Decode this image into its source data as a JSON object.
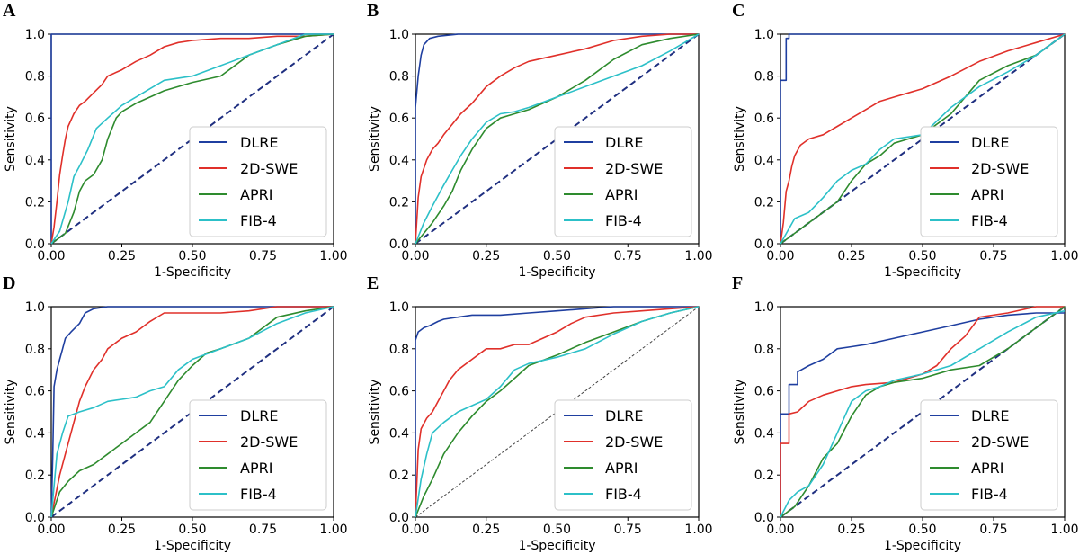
{
  "figure": {
    "colors": {
      "DLRE": "#1f3fa0",
      "2D-SWE": "#e0302a",
      "APRI": "#2e8b2e",
      "FIB-4": "#2cc0c8",
      "chance": "#1f2f80",
      "chance_thin": "#444444"
    }
  },
  "chart_data": [
    {
      "panel": "A",
      "type": "line",
      "xlabel": "1-Specificity",
      "ylabel": "Sensitivity",
      "xlim": [
        0,
        1
      ],
      "ylim": [
        0,
        1
      ],
      "xticks": [
        "0.00",
        "0.25",
        "0.50",
        "0.75",
        "1.00"
      ],
      "yticks": [
        "0.0",
        "0.2",
        "0.4",
        "0.6",
        "0.8",
        "1.0"
      ],
      "grid": false,
      "legend": "lower-right",
      "chance_style": "thick",
      "series": [
        {
          "name": "DLRE",
          "x": [
            0,
            0,
            1
          ],
          "y": [
            0,
            1,
            1
          ]
        },
        {
          "name": "2D-SWE",
          "x": [
            0,
            0.01,
            0.02,
            0.03,
            0.04,
            0.05,
            0.06,
            0.08,
            0.1,
            0.12,
            0.15,
            0.18,
            0.2,
            0.25,
            0.3,
            0.35,
            0.4,
            0.45,
            0.5,
            0.6,
            0.7,
            0.8,
            0.9,
            1.0
          ],
          "y": [
            0,
            0.08,
            0.2,
            0.33,
            0.42,
            0.5,
            0.56,
            0.62,
            0.66,
            0.68,
            0.72,
            0.76,
            0.8,
            0.83,
            0.87,
            0.9,
            0.94,
            0.96,
            0.97,
            0.98,
            0.98,
            0.99,
            0.99,
            1.0
          ]
        },
        {
          "name": "APRI",
          "x": [
            0,
            0.05,
            0.08,
            0.1,
            0.12,
            0.15,
            0.18,
            0.2,
            0.23,
            0.25,
            0.3,
            0.35,
            0.4,
            0.5,
            0.6,
            0.7,
            0.8,
            0.9,
            1.0
          ],
          "y": [
            0,
            0.05,
            0.15,
            0.25,
            0.3,
            0.33,
            0.4,
            0.5,
            0.6,
            0.63,
            0.67,
            0.7,
            0.73,
            0.77,
            0.8,
            0.9,
            0.95,
            0.99,
            1.0
          ]
        },
        {
          "name": "FIB-4",
          "x": [
            0,
            0.03,
            0.06,
            0.08,
            0.1,
            0.13,
            0.16,
            0.2,
            0.25,
            0.3,
            0.35,
            0.4,
            0.5,
            0.6,
            0.7,
            0.8,
            0.9,
            1.0
          ],
          "y": [
            0,
            0.06,
            0.2,
            0.32,
            0.37,
            0.45,
            0.55,
            0.6,
            0.66,
            0.7,
            0.74,
            0.78,
            0.8,
            0.85,
            0.9,
            0.95,
            1.0,
            1.0
          ]
        }
      ]
    },
    {
      "panel": "B",
      "type": "line",
      "xlabel": "1-Specificity",
      "ylabel": "Sensitivity",
      "xlim": [
        0,
        1
      ],
      "ylim": [
        0,
        1
      ],
      "xticks": [
        "0.00",
        "0.25",
        "0.50",
        "0.75",
        "1.00"
      ],
      "yticks": [
        "0.0",
        "0.2",
        "0.4",
        "0.6",
        "0.8",
        "1.0"
      ],
      "grid": false,
      "legend": "lower-right",
      "chance_style": "thick",
      "series": [
        {
          "name": "DLRE",
          "x": [
            0,
            0,
            0.01,
            0.02,
            0.03,
            0.05,
            0.08,
            0.15,
            0.3,
            1.0
          ],
          "y": [
            0,
            0.65,
            0.8,
            0.9,
            0.95,
            0.98,
            0.99,
            1.0,
            1.0,
            1.0
          ]
        },
        {
          "name": "2D-SWE",
          "x": [
            0,
            0.01,
            0.02,
            0.04,
            0.06,
            0.08,
            0.1,
            0.13,
            0.16,
            0.2,
            0.25,
            0.3,
            0.35,
            0.4,
            0.5,
            0.6,
            0.7,
            0.8,
            0.9,
            1.0
          ],
          "y": [
            0,
            0.22,
            0.32,
            0.4,
            0.45,
            0.48,
            0.52,
            0.57,
            0.62,
            0.67,
            0.75,
            0.8,
            0.84,
            0.87,
            0.9,
            0.93,
            0.97,
            0.99,
            1.0,
            1.0
          ]
        },
        {
          "name": "APRI",
          "x": [
            0,
            0.03,
            0.06,
            0.1,
            0.13,
            0.16,
            0.2,
            0.25,
            0.3,
            0.35,
            0.4,
            0.5,
            0.6,
            0.7,
            0.8,
            0.9,
            1.0
          ],
          "y": [
            0,
            0.05,
            0.1,
            0.18,
            0.25,
            0.35,
            0.45,
            0.55,
            0.6,
            0.62,
            0.64,
            0.7,
            0.78,
            0.88,
            0.95,
            0.98,
            1.0
          ]
        },
        {
          "name": "FIB-4",
          "x": [
            0,
            0.03,
            0.06,
            0.1,
            0.13,
            0.16,
            0.2,
            0.25,
            0.3,
            0.35,
            0.4,
            0.5,
            0.6,
            0.7,
            0.8,
            0.9,
            1.0
          ],
          "y": [
            0,
            0.1,
            0.18,
            0.28,
            0.35,
            0.42,
            0.5,
            0.58,
            0.62,
            0.63,
            0.65,
            0.7,
            0.75,
            0.8,
            0.85,
            0.92,
            1.0
          ]
        }
      ]
    },
    {
      "panel": "C",
      "type": "line",
      "xlabel": "1-Specificity",
      "ylabel": "Sensitivity",
      "xlim": [
        0,
        1
      ],
      "ylim": [
        0,
        1
      ],
      "xticks": [
        "0.00",
        "0.25",
        "0.50",
        "0.75",
        "1.00"
      ],
      "yticks": [
        "0.0",
        "0.2",
        "0.4",
        "0.6",
        "0.8",
        "1.0"
      ],
      "grid": false,
      "legend": "lower-right",
      "chance_style": "thick",
      "series": [
        {
          "name": "DLRE",
          "x": [
            0,
            0,
            0.02,
            0.02,
            0.03,
            0.03,
            1.0
          ],
          "y": [
            0,
            0.78,
            0.78,
            0.98,
            0.98,
            1.0,
            1.0
          ]
        },
        {
          "name": "2D-SWE",
          "x": [
            0,
            0.01,
            0.02,
            0.03,
            0.04,
            0.05,
            0.07,
            0.1,
            0.15,
            0.2,
            0.25,
            0.3,
            0.35,
            0.4,
            0.5,
            0.6,
            0.7,
            0.8,
            0.9,
            1.0
          ],
          "y": [
            0,
            0.1,
            0.25,
            0.3,
            0.37,
            0.42,
            0.47,
            0.5,
            0.52,
            0.56,
            0.6,
            0.64,
            0.68,
            0.7,
            0.74,
            0.8,
            0.87,
            0.92,
            0.96,
            1.0
          ]
        },
        {
          "name": "APRI",
          "x": [
            0,
            0.05,
            0.1,
            0.15,
            0.2,
            0.25,
            0.3,
            0.35,
            0.4,
            0.5,
            0.6,
            0.7,
            0.8,
            0.9,
            1.0
          ],
          "y": [
            0,
            0.05,
            0.1,
            0.15,
            0.2,
            0.3,
            0.38,
            0.42,
            0.48,
            0.52,
            0.62,
            0.78,
            0.85,
            0.9,
            1.0
          ]
        },
        {
          "name": "FIB-4",
          "x": [
            0,
            0.05,
            0.1,
            0.15,
            0.2,
            0.25,
            0.3,
            0.35,
            0.4,
            0.5,
            0.6,
            0.7,
            0.8,
            0.9,
            1.0
          ],
          "y": [
            0,
            0.12,
            0.15,
            0.22,
            0.3,
            0.35,
            0.38,
            0.45,
            0.5,
            0.52,
            0.65,
            0.75,
            0.82,
            0.9,
            1.0
          ]
        }
      ]
    },
    {
      "panel": "D",
      "type": "line",
      "xlabel": "1-Specificity",
      "ylabel": "Sensitivity",
      "xlim": [
        0,
        1
      ],
      "ylim": [
        0,
        1
      ],
      "xticks": [
        "0.00",
        "0.25",
        "0.50",
        "0.75",
        "1.00"
      ],
      "yticks": [
        "0.0",
        "0.2",
        "0.4",
        "0.6",
        "0.8",
        "1.0"
      ],
      "grid": false,
      "legend": "lower-right",
      "chance_style": "thick",
      "series": [
        {
          "name": "DLRE",
          "x": [
            0,
            0.005,
            0.01,
            0.02,
            0.03,
            0.04,
            0.05,
            0.07,
            0.1,
            0.12,
            0.15,
            0.2,
            1.0
          ],
          "y": [
            0,
            0.28,
            0.62,
            0.7,
            0.75,
            0.8,
            0.85,
            0.88,
            0.92,
            0.97,
            0.99,
            1.0,
            1.0
          ]
        },
        {
          "name": "2D-SWE",
          "x": [
            0,
            0.03,
            0.06,
            0.08,
            0.1,
            0.12,
            0.15,
            0.18,
            0.2,
            0.25,
            0.3,
            0.35,
            0.4,
            0.5,
            0.6,
            0.7,
            0.8,
            1.0
          ],
          "y": [
            0,
            0.2,
            0.35,
            0.45,
            0.55,
            0.62,
            0.7,
            0.75,
            0.8,
            0.85,
            0.88,
            0.93,
            0.97,
            0.97,
            0.97,
            0.98,
            1.0,
            1.0
          ]
        },
        {
          "name": "APRI",
          "x": [
            0,
            0.03,
            0.06,
            0.1,
            0.15,
            0.2,
            0.25,
            0.3,
            0.35,
            0.4,
            0.45,
            0.5,
            0.55,
            0.6,
            0.7,
            0.8,
            0.9,
            1.0
          ],
          "y": [
            0,
            0.12,
            0.17,
            0.22,
            0.25,
            0.3,
            0.35,
            0.4,
            0.45,
            0.55,
            0.65,
            0.72,
            0.78,
            0.8,
            0.85,
            0.95,
            0.98,
            1.0
          ]
        },
        {
          "name": "FIB-4",
          "x": [
            0,
            0.02,
            0.04,
            0.06,
            0.1,
            0.15,
            0.2,
            0.25,
            0.3,
            0.35,
            0.4,
            0.45,
            0.5,
            0.6,
            0.7,
            0.8,
            0.9,
            1.0
          ],
          "y": [
            0,
            0.3,
            0.4,
            0.48,
            0.5,
            0.52,
            0.55,
            0.56,
            0.57,
            0.6,
            0.62,
            0.7,
            0.75,
            0.8,
            0.85,
            0.92,
            0.97,
            1.0
          ]
        }
      ]
    },
    {
      "panel": "E",
      "type": "line",
      "xlabel": "1-Specificity",
      "ylabel": "Sensitivity",
      "xlim": [
        0,
        1
      ],
      "ylim": [
        0,
        1
      ],
      "xticks": [
        "0.00",
        "0.25",
        "0.50",
        "0.75",
        "1.00"
      ],
      "yticks": [
        "0.0",
        "0.2",
        "0.4",
        "0.6",
        "0.8",
        "1.0"
      ],
      "grid": false,
      "legend": "lower-right",
      "chance_style": "thin",
      "series": [
        {
          "name": "DLRE",
          "x": [
            0,
            0,
            0.01,
            0.03,
            0.05,
            0.08,
            0.1,
            0.15,
            0.2,
            0.3,
            0.4,
            0.5,
            0.6,
            0.7,
            0.8,
            0.9,
            1.0
          ],
          "y": [
            0,
            0.84,
            0.88,
            0.9,
            0.91,
            0.93,
            0.94,
            0.95,
            0.96,
            0.96,
            0.97,
            0.98,
            0.99,
            1.0,
            1.0,
            1.0,
            1.0
          ]
        },
        {
          "name": "2D-SWE",
          "x": [
            0,
            0.01,
            0.02,
            0.04,
            0.06,
            0.08,
            0.1,
            0.12,
            0.15,
            0.2,
            0.25,
            0.3,
            0.35,
            0.4,
            0.45,
            0.5,
            0.55,
            0.6,
            0.7,
            0.8,
            0.9,
            1.0
          ],
          "y": [
            0,
            0.32,
            0.42,
            0.47,
            0.5,
            0.55,
            0.6,
            0.65,
            0.7,
            0.75,
            0.8,
            0.8,
            0.82,
            0.82,
            0.85,
            0.88,
            0.92,
            0.95,
            0.97,
            0.98,
            0.99,
            1.0
          ]
        },
        {
          "name": "APRI",
          "x": [
            0,
            0.03,
            0.06,
            0.1,
            0.15,
            0.2,
            0.25,
            0.3,
            0.35,
            0.4,
            0.5,
            0.6,
            0.7,
            0.8,
            0.9,
            1.0
          ],
          "y": [
            0,
            0.1,
            0.18,
            0.3,
            0.4,
            0.48,
            0.55,
            0.6,
            0.66,
            0.72,
            0.77,
            0.83,
            0.88,
            0.93,
            0.97,
            1.0
          ]
        },
        {
          "name": "FIB-4",
          "x": [
            0,
            0.02,
            0.04,
            0.06,
            0.1,
            0.15,
            0.2,
            0.25,
            0.3,
            0.35,
            0.4,
            0.5,
            0.6,
            0.7,
            0.8,
            0.9,
            1.0
          ],
          "y": [
            0,
            0.18,
            0.3,
            0.4,
            0.45,
            0.5,
            0.53,
            0.56,
            0.62,
            0.7,
            0.73,
            0.76,
            0.8,
            0.87,
            0.93,
            0.97,
            1.0
          ]
        }
      ]
    },
    {
      "panel": "F",
      "type": "line",
      "xlabel": "1-Specificity",
      "ylabel": "Sensitivity",
      "xlim": [
        0,
        1
      ],
      "ylim": [
        0,
        1
      ],
      "xticks": [
        "0.00",
        "0.25",
        "0.50",
        "0.75",
        "1.00"
      ],
      "yticks": [
        "0.0",
        "0.2",
        "0.4",
        "0.6",
        "0.8",
        "1.0"
      ],
      "grid": false,
      "legend": "lower-right",
      "chance_style": "thick",
      "series": [
        {
          "name": "DLRE",
          "x": [
            0,
            0,
            0.03,
            0.03,
            0.06,
            0.06,
            0.1,
            0.15,
            0.2,
            0.25,
            0.3,
            0.4,
            0.5,
            0.6,
            0.7,
            0.8,
            0.9,
            1.0
          ],
          "y": [
            0,
            0.49,
            0.49,
            0.63,
            0.63,
            0.69,
            0.72,
            0.75,
            0.8,
            0.81,
            0.82,
            0.85,
            0.88,
            0.91,
            0.94,
            0.96,
            0.97,
            0.97
          ]
        },
        {
          "name": "2D-SWE",
          "x": [
            0,
            0,
            0.03,
            0.03,
            0.06,
            0.1,
            0.15,
            0.2,
            0.25,
            0.3,
            0.4,
            0.5,
            0.55,
            0.6,
            0.65,
            0.7,
            0.8,
            0.9,
            1.0
          ],
          "y": [
            0,
            0.35,
            0.35,
            0.49,
            0.5,
            0.55,
            0.58,
            0.6,
            0.62,
            0.63,
            0.64,
            0.68,
            0.72,
            0.8,
            0.86,
            0.95,
            0.97,
            1.0,
            1.0
          ]
        },
        {
          "name": "APRI",
          "x": [
            0,
            0.05,
            0.1,
            0.15,
            0.2,
            0.25,
            0.3,
            0.35,
            0.4,
            0.5,
            0.6,
            0.7,
            0.8,
            0.9,
            1.0
          ],
          "y": [
            0,
            0.05,
            0.15,
            0.28,
            0.35,
            0.48,
            0.58,
            0.62,
            0.64,
            0.66,
            0.7,
            0.72,
            0.8,
            0.9,
            1.0
          ]
        },
        {
          "name": "FIB-4",
          "x": [
            0,
            0.03,
            0.06,
            0.1,
            0.15,
            0.2,
            0.25,
            0.3,
            0.35,
            0.4,
            0.5,
            0.6,
            0.7,
            0.8,
            0.9,
            1.0
          ],
          "y": [
            0,
            0.08,
            0.12,
            0.15,
            0.25,
            0.4,
            0.55,
            0.6,
            0.62,
            0.65,
            0.68,
            0.72,
            0.8,
            0.88,
            0.95,
            0.98
          ]
        }
      ]
    }
  ]
}
